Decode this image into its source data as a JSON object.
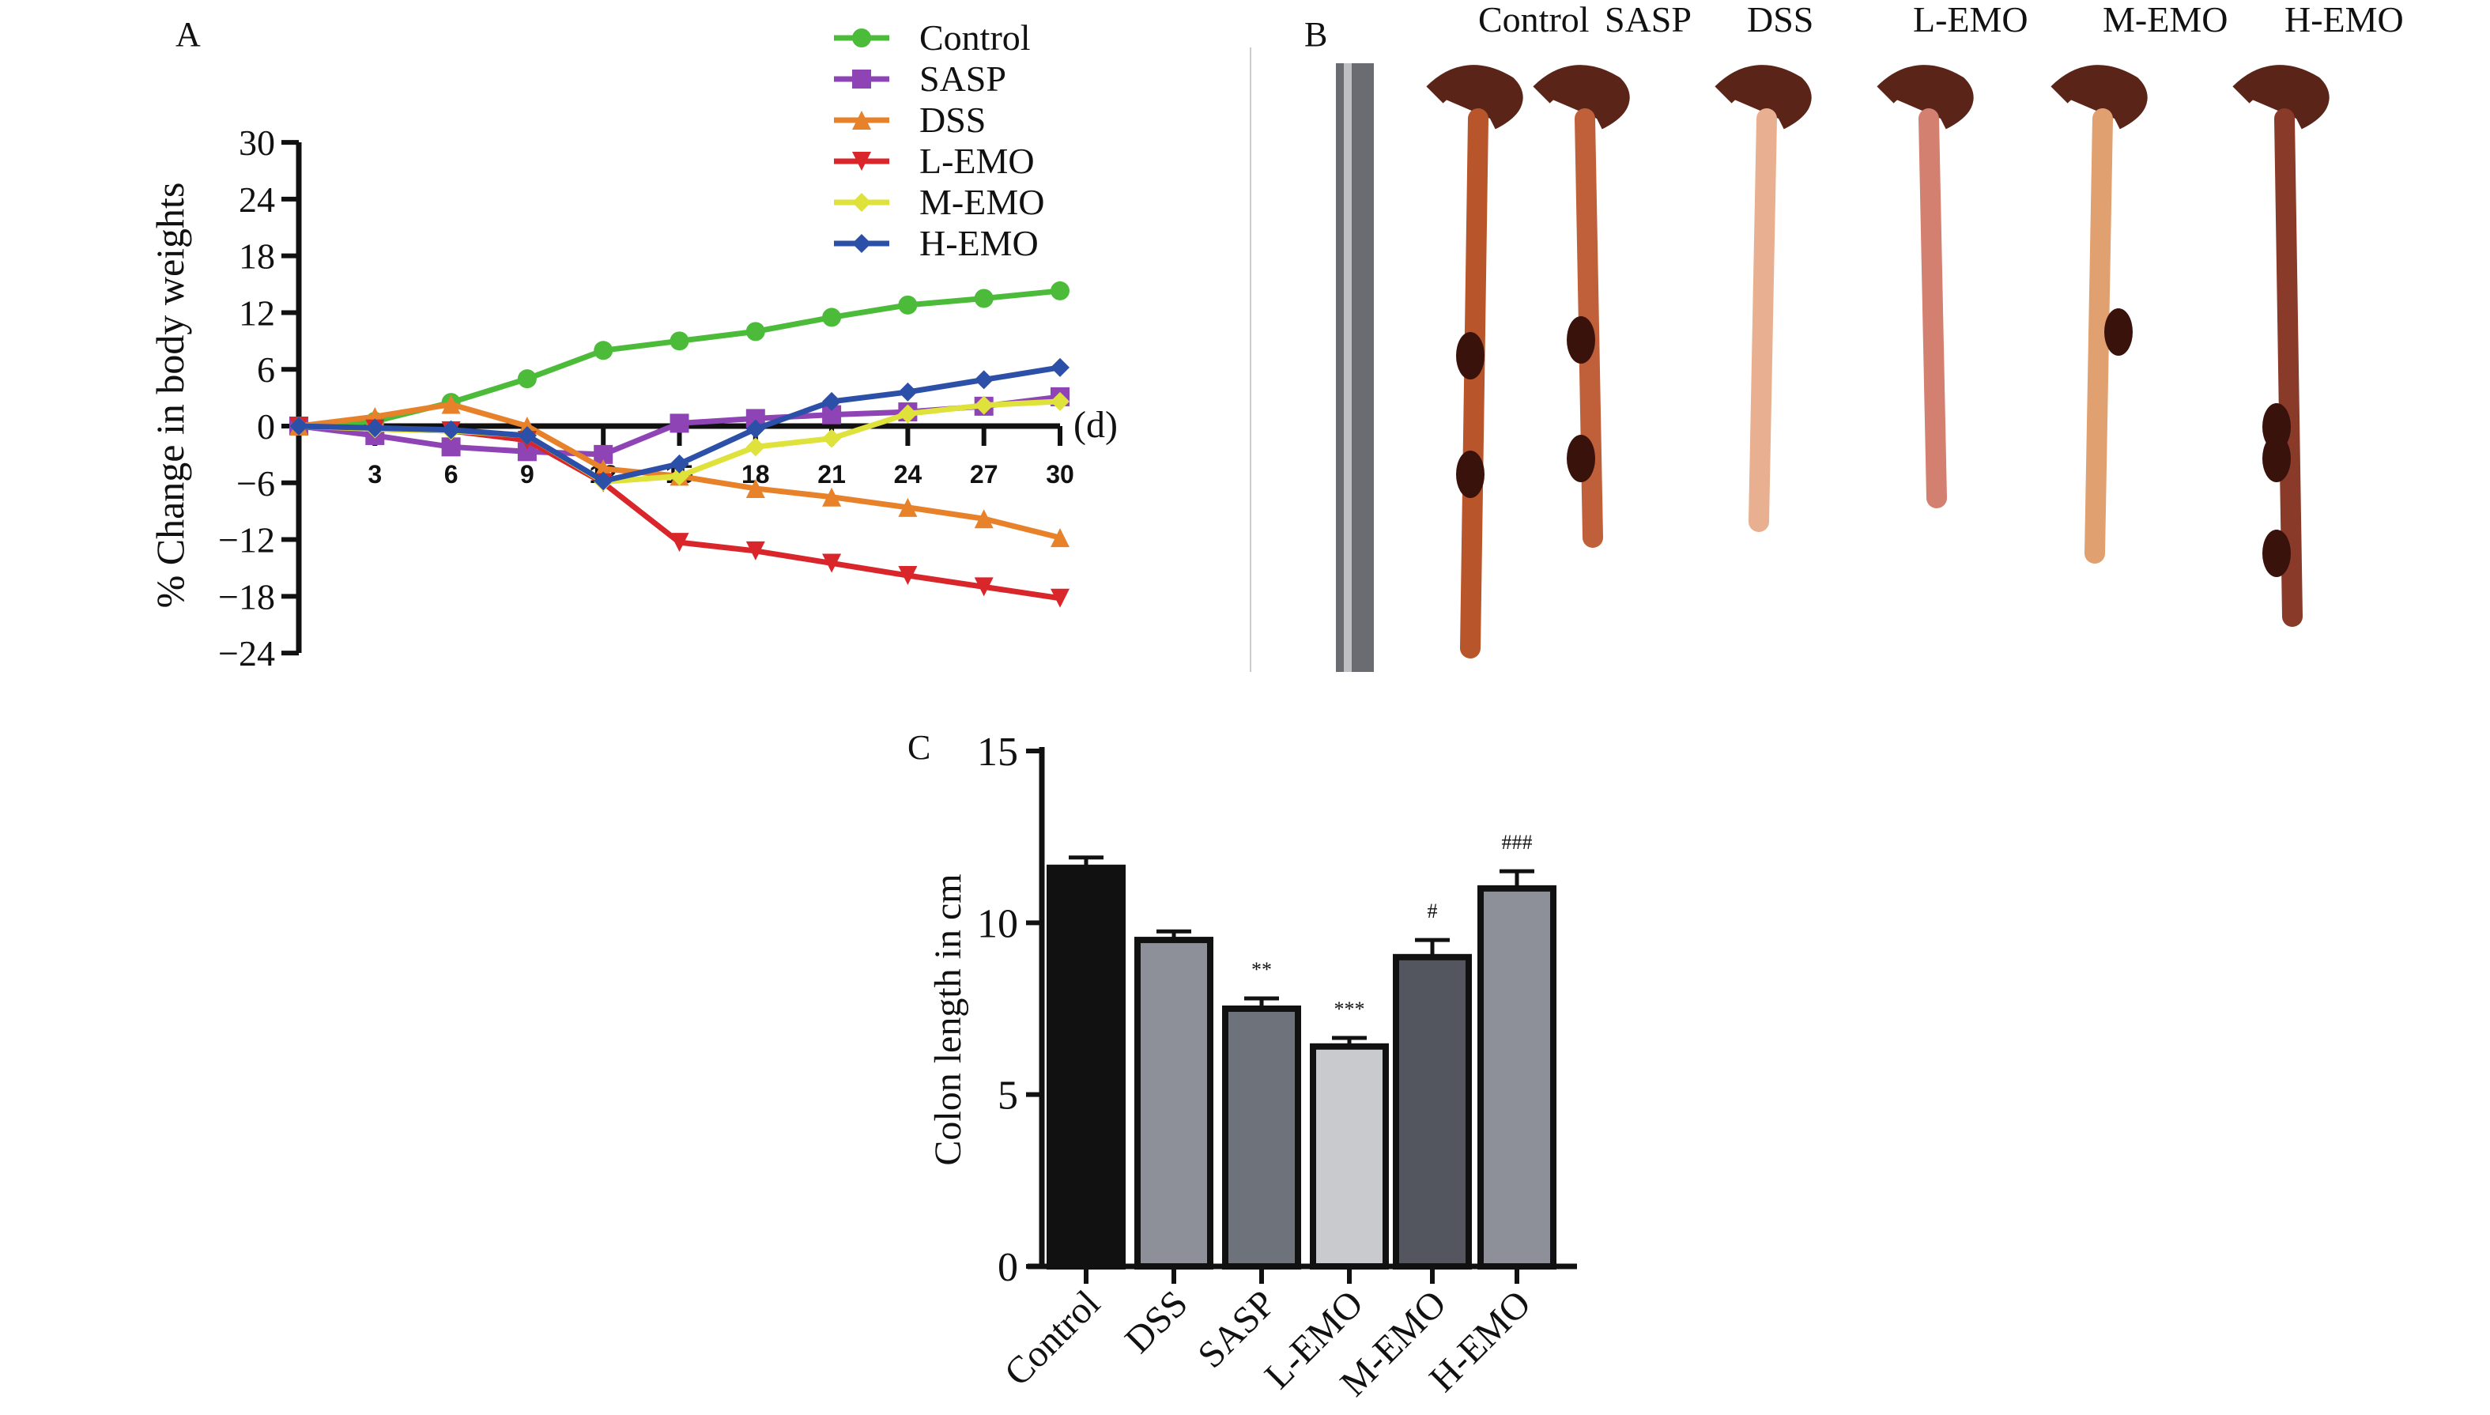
{
  "panels": {
    "a": "A",
    "b": "B",
    "c": "C"
  },
  "photo_labels": [
    "Control",
    "SASP",
    "DSS",
    "L-EMO",
    "M-EMO",
    "H-EMO"
  ],
  "chart_data": [
    {
      "type": "line",
      "panel": "A",
      "xlabel": "(d)",
      "ylabel": "% Change in body weights",
      "ylim": [
        -24,
        30
      ],
      "yticks": [
        "30",
        "24",
        "18",
        "12",
        "6",
        "0",
        "−6",
        "−12",
        "−18",
        "−24"
      ],
      "xticks": [
        "3",
        "6",
        "9",
        "12",
        "15",
        "18",
        "21",
        "24",
        "27",
        "30"
      ],
      "x": [
        0,
        3,
        6,
        9,
        12,
        15,
        18,
        21,
        24,
        27,
        30
      ],
      "legend_position": "top-right",
      "series": [
        {
          "name": "Control",
          "color": "#4cbb3a",
          "marker": "circle",
          "values": [
            0,
            0.5,
            2.5,
            5,
            8,
            9,
            10,
            11.5,
            12.8,
            13.5,
            14.3
          ]
        },
        {
          "name": "SASP",
          "color": "#8e44b5",
          "marker": "square",
          "values": [
            0,
            -1,
            -2.2,
            -2.7,
            -3,
            0.3,
            0.8,
            1.2,
            1.5,
            2.1,
            3.1
          ]
        },
        {
          "name": "DSS",
          "color": "#e8822a",
          "marker": "triangle-up",
          "values": [
            0,
            1,
            2.3,
            0,
            -4.5,
            -5.3,
            -6.6,
            -7.5,
            -8.6,
            -9.8,
            -11.8
          ]
        },
        {
          "name": "L-EMO",
          "color": "#d8262a",
          "marker": "triangle-down",
          "values": [
            0,
            -0.3,
            -0.5,
            -1.5,
            -6,
            -12.3,
            -13.2,
            -14.5,
            -15.8,
            -17,
            -18.2
          ]
        },
        {
          "name": "M-EMO",
          "color": "#dfe23a",
          "marker": "diamond",
          "values": [
            0,
            -0.3,
            -0.5,
            -1,
            -5.9,
            -5.3,
            -2.2,
            -1.3,
            1.3,
            2.2,
            2.6
          ]
        },
        {
          "name": "H-EMO",
          "color": "#2c4fa8",
          "marker": "diamond",
          "values": [
            0,
            -0.2,
            -0.4,
            -1,
            -5.8,
            -4,
            -0.3,
            2.6,
            3.6,
            4.9,
            6.2
          ]
        }
      ]
    },
    {
      "type": "bar",
      "panel": "C",
      "ylabel": "Colon length in cm",
      "ylim": [
        0,
        15
      ],
      "yticks": [
        "0",
        "5",
        "10",
        "15"
      ],
      "categories": [
        "Control",
        "DSS",
        "SASP",
        "L-EMO",
        "M-EMO",
        "H-EMO"
      ],
      "values": [
        11.6,
        9.5,
        7.5,
        6.4,
        9.0,
        11.0
      ],
      "errors": [
        0.3,
        0.25,
        0.3,
        0.25,
        0.5,
        0.5
      ],
      "colors": [
        "#111111",
        "#8e9099",
        "#6e727b",
        "#c9cacd",
        "#53565e",
        "#8e9099"
      ],
      "annotations": [
        "",
        "",
        "**",
        "***",
        "#",
        "###"
      ]
    }
  ]
}
